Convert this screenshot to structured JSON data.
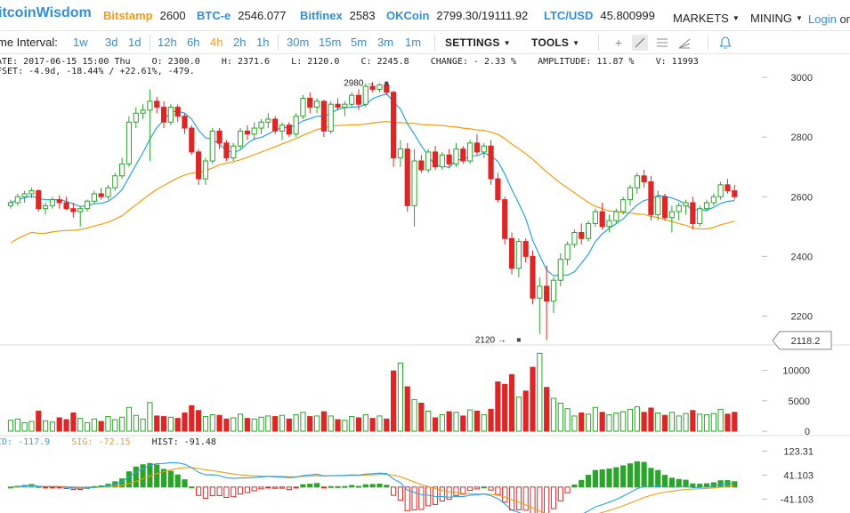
{
  "header": {
    "logo": "itcoinWisdom",
    "tickers": [
      {
        "exchange": "Bitstamp",
        "value": "2600",
        "color": "#f39c12"
      },
      {
        "exchange": "BTC-e",
        "value": "2546.077",
        "color": "#2f8fd8"
      },
      {
        "exchange": "Bitfinex",
        "value": "2583",
        "color": "#2f8fd8"
      },
      {
        "exchange": "OKCoin",
        "value": "2799.30/19111.92",
        "color": "#2f8fd8"
      },
      {
        "exchange": "LTC/USD",
        "value": "45.800999",
        "color": "#2f8fd8"
      }
    ],
    "menus": {
      "markets": "MARKETS",
      "mining": "MINING"
    },
    "login": {
      "link": "Login",
      "or": "or"
    }
  },
  "toolbar": {
    "interval_label": "me Interval:",
    "intervals": [
      "1w",
      "3d",
      "1d",
      "12h",
      "6h",
      "4h",
      "2h",
      "1h",
      "30m",
      "15m",
      "5m",
      "3m",
      "1m"
    ],
    "active_interval": "4h",
    "settings": "SETTINGS",
    "tools": "TOOLS",
    "tool_icons": [
      "crosshair-icon",
      "line-icon",
      "hlines-icon",
      "fan-icon",
      "bell-icon"
    ]
  },
  "info": {
    "line1": {
      "date": "ATE: 2017-06-15 15:00 Thu",
      "open": "O: 2300.0",
      "high": "H: 2371.6",
      "low": "L: 2120.0",
      "close": "C: 2245.8",
      "change": "CHANGE: - 2.33 %",
      "amplitude": "AMPLITUDE: 11.87 %",
      "volume": "V: 11993"
    },
    "line2": "FSET: -4.9d, -18.44% / +22.61%, -479."
  },
  "colors": {
    "up": "#2aa52a",
    "down": "#dd2727",
    "ma_fast": "#29a3e0",
    "ma_slow": "#f39c12",
    "link": "#2f8fd8"
  },
  "chart_data": {
    "type": "candlestick",
    "price_axis": {
      "ticks": [
        2200,
        2400,
        2600,
        2800,
        3000
      ],
      "ylim": [
        2115,
        3015
      ]
    },
    "volume_axis": {
      "ticks": [
        0,
        5000,
        10000
      ],
      "ylim": [
        0,
        13000
      ]
    },
    "macd_axis": {
      "ticks": [
        "123.31",
        "41.103",
        "-41.103"
      ],
      "ylim": [
        -80,
        140
      ]
    },
    "current_price_label": "2118.2",
    "annotations": [
      {
        "text": "2980",
        "value": 2980,
        "index": 54,
        "side": "left"
      },
      {
        "text": "2120",
        "value": 2120,
        "index": 73,
        "side": "right"
      }
    ],
    "macd_labels": {
      "macd": "CD: -117.9",
      "signal": "SIG: -72.15",
      "hist": "HIST: -91.48"
    },
    "candles": [
      [
        2570,
        2590,
        2560,
        2580
      ],
      [
        2580,
        2610,
        2570,
        2600
      ],
      [
        2600,
        2620,
        2580,
        2610
      ],
      [
        2610,
        2630,
        2595,
        2620
      ],
      [
        2620,
        2625,
        2550,
        2560
      ],
      [
        2560,
        2580,
        2540,
        2570
      ],
      [
        2570,
        2600,
        2560,
        2590
      ],
      [
        2590,
        2605,
        2560,
        2580
      ],
      [
        2580,
        2600,
        2555,
        2560
      ],
      [
        2560,
        2580,
        2530,
        2550
      ],
      [
        2550,
        2570,
        2500,
        2560
      ],
      [
        2560,
        2590,
        2550,
        2585
      ],
      [
        2585,
        2620,
        2575,
        2610
      ],
      [
        2610,
        2630,
        2590,
        2600
      ],
      [
        2600,
        2640,
        2590,
        2630
      ],
      [
        2630,
        2680,
        2620,
        2670
      ],
      [
        2670,
        2730,
        2660,
        2710
      ],
      [
        2710,
        2870,
        2700,
        2850
      ],
      [
        2850,
        2900,
        2830,
        2880
      ],
      [
        2880,
        2910,
        2860,
        2890
      ],
      [
        2890,
        2960,
        2720,
        2920
      ],
      [
        2920,
        2935,
        2880,
        2900
      ],
      [
        2900,
        2920,
        2830,
        2850
      ],
      [
        2850,
        2910,
        2840,
        2900
      ],
      [
        2900,
        2910,
        2850,
        2870
      ],
      [
        2870,
        2880,
        2810,
        2830
      ],
      [
        2830,
        2840,
        2740,
        2750
      ],
      [
        2750,
        2760,
        2640,
        2660
      ],
      [
        2660,
        2730,
        2640,
        2720
      ],
      [
        2720,
        2830,
        2710,
        2820
      ],
      [
        2820,
        2830,
        2760,
        2780
      ],
      [
        2780,
        2790,
        2720,
        2730
      ],
      [
        2730,
        2780,
        2720,
        2770
      ],
      [
        2770,
        2830,
        2760,
        2820
      ],
      [
        2820,
        2840,
        2790,
        2810
      ],
      [
        2810,
        2850,
        2790,
        2830
      ],
      [
        2830,
        2860,
        2810,
        2850
      ],
      [
        2850,
        2880,
        2830,
        2860
      ],
      [
        2860,
        2870,
        2810,
        2820
      ],
      [
        2820,
        2850,
        2790,
        2840
      ],
      [
        2840,
        2850,
        2800,
        2810
      ],
      [
        2810,
        2880,
        2800,
        2870
      ],
      [
        2870,
        2940,
        2860,
        2930
      ],
      [
        2930,
        2950,
        2880,
        2900
      ],
      [
        2900,
        2930,
        2880,
        2920
      ],
      [
        2920,
        2925,
        2800,
        2820
      ],
      [
        2820,
        2920,
        2810,
        2910
      ],
      [
        2910,
        2930,
        2890,
        2900
      ],
      [
        2900,
        2920,
        2870,
        2910
      ],
      [
        2910,
        2950,
        2900,
        2940
      ],
      [
        2940,
        2960,
        2890,
        2910
      ],
      [
        2910,
        2980,
        2900,
        2970
      ],
      [
        2970,
        2985,
        2950,
        2960
      ],
      [
        2960,
        2980,
        2950,
        2975
      ],
      [
        2975,
        2980,
        2940,
        2950
      ],
      [
        2950,
        2955,
        2700,
        2730
      ],
      [
        2730,
        2790,
        2700,
        2760
      ],
      [
        2760,
        2780,
        2550,
        2570
      ],
      [
        2570,
        2760,
        2500,
        2720
      ],
      [
        2720,
        2740,
        2680,
        2690
      ],
      [
        2690,
        2760,
        2680,
        2750
      ],
      [
        2750,
        2770,
        2690,
        2700
      ],
      [
        2700,
        2750,
        2690,
        2740
      ],
      [
        2740,
        2760,
        2700,
        2710
      ],
      [
        2710,
        2780,
        2700,
        2760
      ],
      [
        2760,
        2770,
        2710,
        2720
      ],
      [
        2720,
        2790,
        2710,
        2780
      ],
      [
        2780,
        2810,
        2740,
        2750
      ],
      [
        2750,
        2780,
        2730,
        2770
      ],
      [
        2770,
        2790,
        2640,
        2660
      ],
      [
        2660,
        2680,
        2580,
        2590
      ],
      [
        2590,
        2600,
        2440,
        2460
      ],
      [
        2460,
        2480,
        2340,
        2360
      ],
      [
        2360,
        2460,
        2330,
        2450
      ],
      [
        2450,
        2460,
        2380,
        2400
      ],
      [
        2400,
        2420,
        2240,
        2260
      ],
      [
        2260,
        2330,
        2140,
        2300
      ],
      [
        2300,
        2370,
        2120,
        2250
      ],
      [
        2250,
        2330,
        2210,
        2320
      ],
      [
        2320,
        2410,
        2300,
        2390
      ],
      [
        2390,
        2450,
        2370,
        2440
      ],
      [
        2440,
        2490,
        2430,
        2480
      ],
      [
        2480,
        2510,
        2440,
        2460
      ],
      [
        2460,
        2520,
        2450,
        2510
      ],
      [
        2510,
        2560,
        2500,
        2550
      ],
      [
        2550,
        2580,
        2490,
        2500
      ],
      [
        2500,
        2540,
        2480,
        2520
      ],
      [
        2520,
        2560,
        2510,
        2550
      ],
      [
        2550,
        2600,
        2540,
        2590
      ],
      [
        2590,
        2640,
        2570,
        2630
      ],
      [
        2630,
        2680,
        2610,
        2670
      ],
      [
        2670,
        2690,
        2630,
        2650
      ],
      [
        2650,
        2670,
        2520,
        2540
      ],
      [
        2540,
        2620,
        2520,
        2600
      ],
      [
        2600,
        2610,
        2520,
        2530
      ],
      [
        2530,
        2570,
        2480,
        2550
      ],
      [
        2550,
        2580,
        2520,
        2570
      ],
      [
        2570,
        2590,
        2540,
        2580
      ],
      [
        2580,
        2600,
        2490,
        2510
      ],
      [
        2510,
        2570,
        2500,
        2560
      ],
      [
        2560,
        2590,
        2550,
        2580
      ],
      [
        2580,
        2610,
        2570,
        2600
      ],
      [
        2600,
        2650,
        2590,
        2640
      ],
      [
        2640,
        2660,
        2610,
        2620
      ],
      [
        2620,
        2640,
        2590,
        2600
      ]
    ],
    "volumes": [
      1800,
      2000,
      1400,
      1600,
      3300,
      1700,
      1500,
      2200,
      1900,
      3000,
      2100,
      1400,
      2000,
      1600,
      2400,
      1900,
      2300,
      3900,
      2600,
      2000,
      4700,
      2500,
      2400,
      2300,
      2100,
      3000,
      4200,
      3400,
      2400,
      2700,
      2600,
      2000,
      2200,
      2800,
      2100,
      2000,
      2300,
      2500,
      2400,
      2600,
      2000,
      2700,
      3100,
      2400,
      2500,
      3200,
      2500,
      1900,
      1800,
      2400,
      2200,
      2700,
      2100,
      2500,
      2000,
      9900,
      11200,
      7300,
      5200,
      4600,
      3300,
      2200,
      2700,
      3200,
      3100,
      2500,
      3500,
      3300,
      2700,
      3600,
      8100,
      7700,
      9300,
      5600,
      6600,
      10500,
      12800,
      7200,
      5400,
      4600,
      3700,
      2500,
      3000,
      2800,
      3900,
      3100,
      2700,
      3000,
      3200,
      3600,
      4000,
      3100,
      3800,
      3000,
      2600,
      3100,
      2500,
      2900,
      3400,
      2800,
      2700,
      2900,
      3600,
      2800,
      3100
    ],
    "ma_fast_period": 7,
    "ma_slow_period": 30
  }
}
